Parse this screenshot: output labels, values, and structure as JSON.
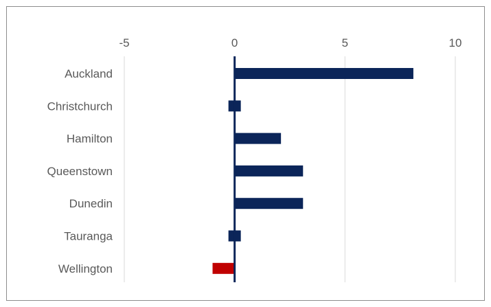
{
  "chart_data": {
    "type": "bar",
    "orientation": "horizontal",
    "title": "",
    "xlabel": "",
    "ylabel": "",
    "xlim": [
      -5,
      10
    ],
    "xticks": [
      -5,
      0,
      5,
      10
    ],
    "xtick_labels": [
      "-5",
      "0",
      "5",
      "10"
    ],
    "x_axis_position": "top",
    "grid": "vertical",
    "legend": "none",
    "categories": [
      "Auckland",
      "Christchurch",
      "Hamilton",
      "Queenstown",
      "Dunedin",
      "Tauranga",
      "Wellington"
    ],
    "values": [
      8.1,
      0.3,
      2.1,
      3.1,
      3.1,
      0.3,
      -1.0
    ],
    "colors": {
      "positive": "#0b2559",
      "negative": "#c00000",
      "gridline": "#d9d9d9",
      "zero_line": "#0b2559",
      "border": "#8c8c8c"
    }
  }
}
